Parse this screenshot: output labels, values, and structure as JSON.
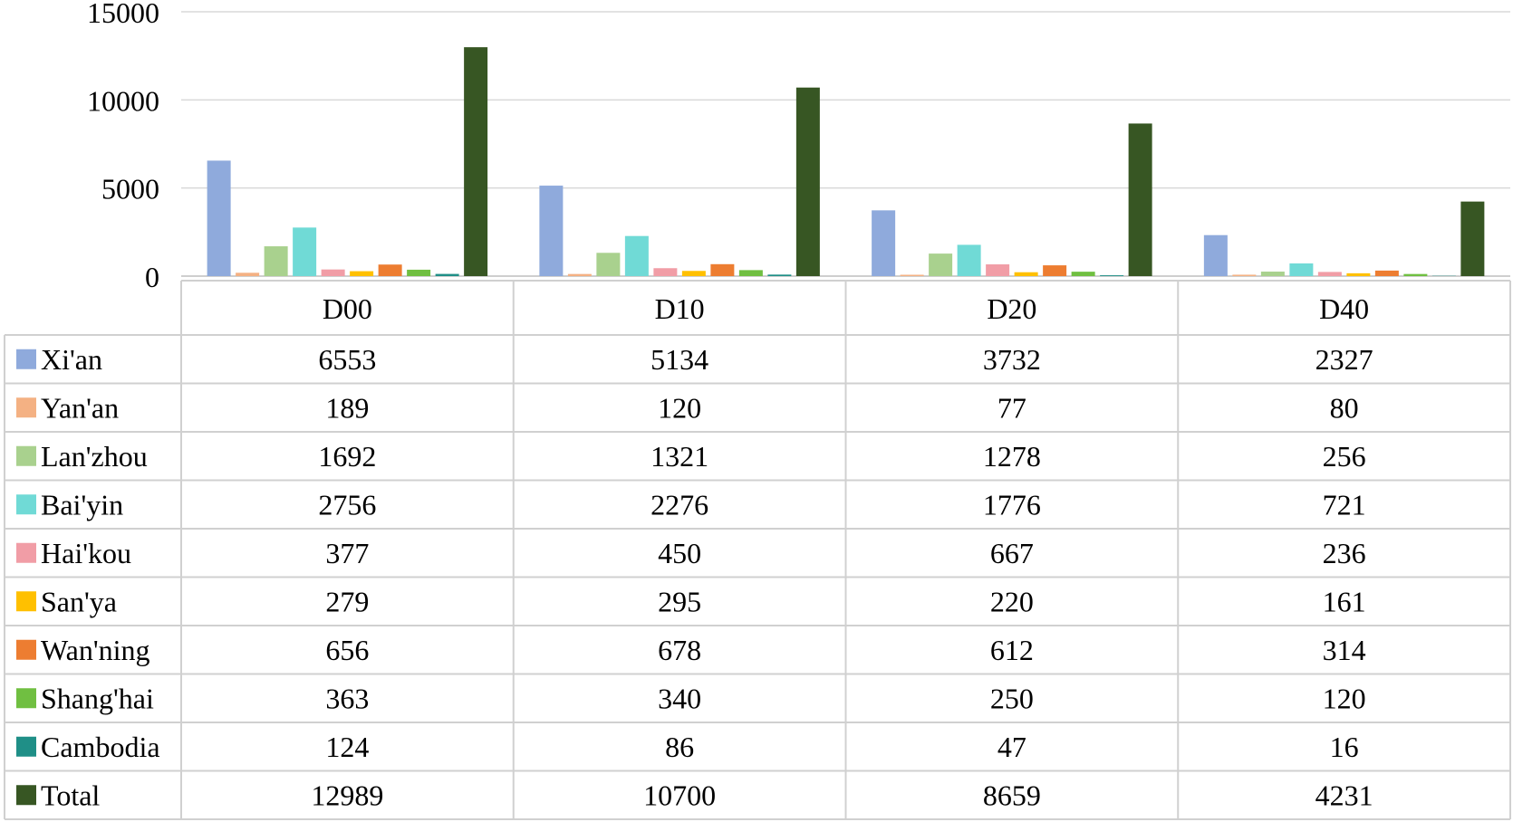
{
  "chart_data": {
    "type": "bar",
    "title": "",
    "xlabel": "",
    "ylabel": "",
    "ylim": [
      0,
      15000
    ],
    "yticks": [
      0,
      5000,
      10000,
      15000
    ],
    "grid": true,
    "legend": "data-table",
    "categories": [
      "D00",
      "D10",
      "D20",
      "D40"
    ],
    "series": [
      {
        "name": "Xi'an",
        "color": "#8FAADC",
        "values": [
          6553,
          5134,
          3732,
          2327
        ]
      },
      {
        "name": "Yan'an",
        "color": "#F4B183",
        "values": [
          189,
          120,
          77,
          80
        ]
      },
      {
        "name": "Lan'zhou",
        "color": "#A9D18E",
        "values": [
          1692,
          1321,
          1278,
          256
        ]
      },
      {
        "name": "Bai'yin",
        "color": "#70DAD6",
        "values": [
          2756,
          2276,
          1776,
          721
        ]
      },
      {
        "name": "Hai'kou",
        "color": "#F19DA6",
        "values": [
          377,
          450,
          667,
          236
        ]
      },
      {
        "name": "San'ya",
        "color": "#FFC000",
        "values": [
          279,
          295,
          220,
          161
        ]
      },
      {
        "name": "Wan'ning",
        "color": "#ED7D31",
        "values": [
          656,
          678,
          612,
          314
        ]
      },
      {
        "name": "Shang'hai",
        "color": "#70BF41",
        "values": [
          363,
          340,
          250,
          120
        ]
      },
      {
        "name": "Cambodia",
        "color": "#1F8F87",
        "values": [
          124,
          86,
          47,
          16
        ]
      },
      {
        "name": "Total",
        "color": "#375623",
        "values": [
          12989,
          10700,
          8659,
          4231
        ]
      }
    ]
  }
}
